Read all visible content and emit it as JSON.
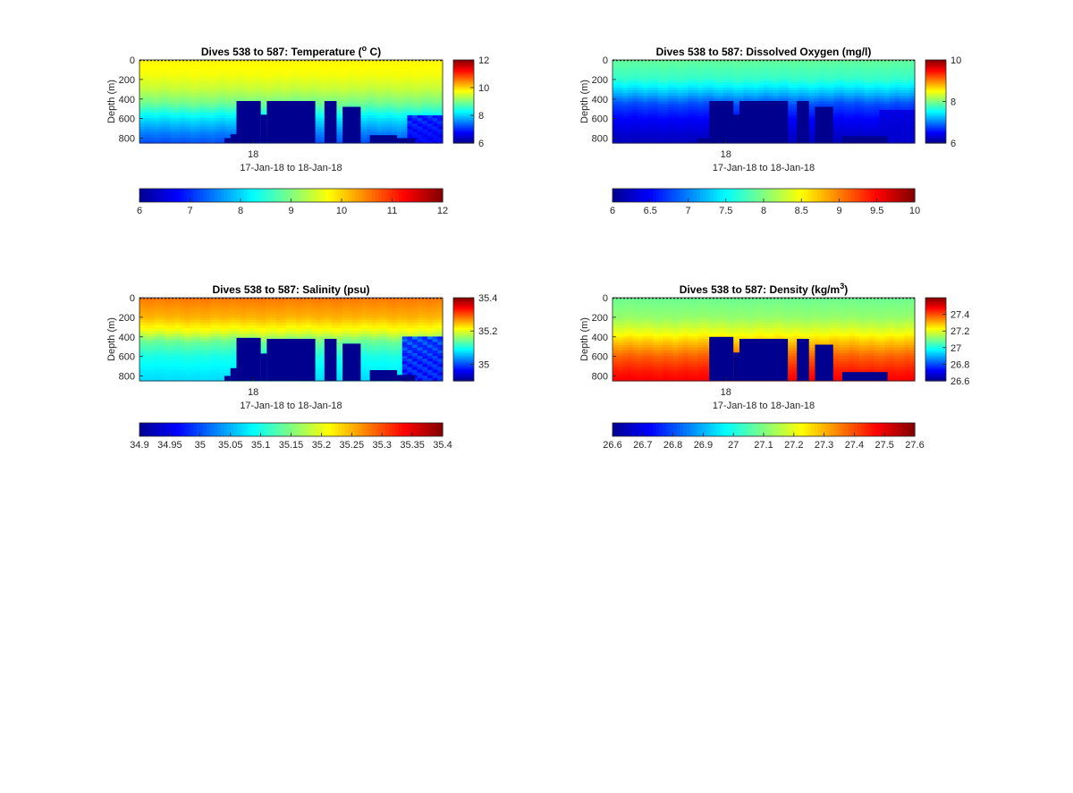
{
  "period_label": "17-Jan-18 to 18-Jan-18",
  "colormap": [
    "#00008f",
    "#0000ff",
    "#0080ff",
    "#00ffff",
    "#80ff80",
    "#ffff00",
    "#ff8000",
    "#ff0000",
    "#800000"
  ],
  "chart_data": [
    {
      "type": "heatmap",
      "title": "Dives 538 to 587: Temperature (°C)",
      "title_main": "Dives 538 to 587: Temperature (",
      "title_sup": "o",
      "title_end": " C)",
      "ylabel": "Depth (m)",
      "xlabel": "17-Jan-18 to 18-Jan-18",
      "x_ticks": [
        "18"
      ],
      "y_ticks": [
        "0",
        "200",
        "400",
        "600",
        "800"
      ],
      "ylim": [
        0,
        850
      ],
      "clim": [
        6,
        12
      ],
      "colorbar_ticks": [
        "6",
        "8",
        "10",
        "12"
      ],
      "hbar_ticks": [
        "6",
        "7",
        "8",
        "9",
        "10",
        "11",
        "12"
      ],
      "profile": [
        [
          0,
          9.8
        ],
        [
          150,
          9.7
        ],
        [
          300,
          9.4
        ],
        [
          450,
          8.9
        ],
        [
          600,
          8.1
        ],
        [
          750,
          7.5
        ],
        [
          850,
          7.2
        ]
      ],
      "mask": [
        [
          [
            0.28,
            0.3
          ],
          800
        ],
        [
          [
            0.3,
            0.32
          ],
          760
        ],
        [
          [
            0.32,
            0.4
          ],
          420
        ],
        [
          [
            0.4,
            0.42
          ],
          560
        ],
        [
          [
            0.42,
            0.58
          ],
          420
        ],
        [
          [
            0.61,
            0.65
          ],
          420
        ],
        [
          [
            0.67,
            0.73
          ],
          480
        ],
        [
          [
            0.76,
            0.85
          ],
          770
        ],
        [
          [
            0.85,
            0.91
          ],
          800
        ]
      ],
      "anomaly": [
        0.88,
        1.0,
        560,
        850,
        6.6
      ]
    },
    {
      "type": "heatmap",
      "title": "Dives 538 to 587: Dissolved Oxygen (mg/l)",
      "title_main": "Dives 538 to 587: Dissolved Oxygen (mg/l)",
      "title_sup": "",
      "title_end": "",
      "ylabel": "Depth (m)",
      "xlabel": "17-Jan-18 to 18-Jan-18",
      "x_ticks": [
        "18"
      ],
      "y_ticks": [
        "0",
        "200",
        "400",
        "600",
        "800"
      ],
      "ylim": [
        0,
        850
      ],
      "clim": [
        6,
        10
      ],
      "colorbar_ticks": [
        "6",
        "8",
        "10"
      ],
      "hbar_ticks": [
        "6",
        "6.5",
        "7",
        "7.5",
        "8",
        "8.5",
        "9",
        "9.5",
        "10"
      ],
      "profile": [
        [
          0,
          7.9
        ],
        [
          200,
          7.7
        ],
        [
          350,
          7.2
        ],
        [
          450,
          6.8
        ],
        [
          600,
          6.5
        ],
        [
          750,
          6.3
        ],
        [
          850,
          6.2
        ]
      ],
      "mask": [
        [
          [
            0.28,
            0.32
          ],
          800
        ],
        [
          [
            0.32,
            0.4
          ],
          420
        ],
        [
          [
            0.4,
            0.42
          ],
          560
        ],
        [
          [
            0.42,
            0.58
          ],
          420
        ],
        [
          [
            0.61,
            0.65
          ],
          420
        ],
        [
          [
            0.67,
            0.73
          ],
          480
        ],
        [
          [
            0.76,
            0.91
          ],
          780
        ]
      ],
      "anomaly": [
        0.88,
        1.0,
        500,
        850,
        6.3
      ]
    },
    {
      "type": "heatmap",
      "title": "Dives 538 to 587: Salinity (psu)",
      "title_main": "Dives 538 to 587: Salinity (psu)",
      "title_sup": "",
      "title_end": "",
      "ylabel": "Depth (m)",
      "xlabel": "17-Jan-18 to 18-Jan-18",
      "x_ticks": [
        "18"
      ],
      "y_ticks": [
        "0",
        "200",
        "400",
        "600",
        "800"
      ],
      "ylim": [
        0,
        850
      ],
      "clim": [
        34.9,
        35.4
      ],
      "colorbar_ticks": [
        "35",
        "35.2",
        "35.4"
      ],
      "hbar_ticks": [
        "34.9",
        "34.95",
        "35",
        "35.05",
        "35.1",
        "35.15",
        "35.2",
        "35.25",
        "35.3",
        "35.35",
        "35.4"
      ],
      "profile": [
        [
          0,
          35.28
        ],
        [
          200,
          35.25
        ],
        [
          350,
          35.2
        ],
        [
          450,
          35.14
        ],
        [
          600,
          35.1
        ],
        [
          750,
          35.08
        ],
        [
          850,
          35.07
        ]
      ],
      "mask": [
        [
          [
            0.28,
            0.3
          ],
          800
        ],
        [
          [
            0.3,
            0.32
          ],
          720
        ],
        [
          [
            0.32,
            0.4
          ],
          410
        ],
        [
          [
            0.4,
            0.42
          ],
          570
        ],
        [
          [
            0.42,
            0.58
          ],
          420
        ],
        [
          [
            0.61,
            0.65
          ],
          420
        ],
        [
          [
            0.67,
            0.73
          ],
          470
        ],
        [
          [
            0.76,
            0.85
          ],
          740
        ],
        [
          [
            0.85,
            0.91
          ],
          790
        ]
      ],
      "anomaly": [
        0.87,
        1.0,
        400,
        850,
        34.95
      ]
    },
    {
      "type": "heatmap",
      "title": "Dives 538 to 587: Density (kg/m³)",
      "title_main": "Dives 538 to 587: Density (kg/m",
      "title_sup": "3",
      "title_end": ")",
      "ylabel": "Depth (m)",
      "xlabel": "17-Jan-18 to 18-Jan-18",
      "x_ticks": [
        "18"
      ],
      "y_ticks": [
        "0",
        "200",
        "400",
        "600",
        "800"
      ],
      "ylim": [
        0,
        850
      ],
      "clim": [
        26.6,
        27.6
      ],
      "colorbar_ticks": [
        "26.6",
        "26.8",
        "27",
        "27.2",
        "27.4"
      ],
      "hbar_ticks": [
        "26.6",
        "26.7",
        "26.8",
        "26.9",
        "27",
        "27.1",
        "27.2",
        "27.3",
        "27.4",
        "27.5",
        "27.6"
      ],
      "profile": [
        [
          0,
          27.08
        ],
        [
          200,
          27.12
        ],
        [
          350,
          27.2
        ],
        [
          450,
          27.28
        ],
        [
          600,
          27.38
        ],
        [
          750,
          27.45
        ],
        [
          850,
          27.48
        ]
      ],
      "mask": [
        [
          [
            0.32,
            0.4
          ],
          400
        ],
        [
          [
            0.4,
            0.42
          ],
          560
        ],
        [
          [
            0.42,
            0.58
          ],
          420
        ],
        [
          [
            0.61,
            0.65
          ],
          420
        ],
        [
          [
            0.67,
            0.73
          ],
          480
        ],
        [
          [
            0.76,
            0.91
          ],
          760
        ]
      ],
      "anomaly": [
        0.0,
        0.0,
        0,
        0,
        27.0
      ]
    }
  ]
}
